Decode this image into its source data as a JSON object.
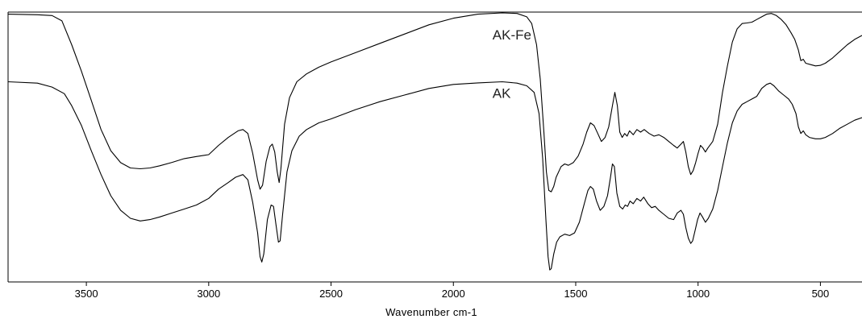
{
  "chart_data": {
    "type": "line",
    "title": "",
    "xlabel": "Wavenumber cm-1",
    "ylabel": "",
    "xlim": [
      3820,
      330
    ],
    "ylim": [
      0,
      100
    ],
    "x_reversed": true,
    "grid": false,
    "xticks": [
      3500,
      3000,
      2500,
      2000,
      1500,
      1000,
      500
    ],
    "xtick_labels": [
      "3500",
      "3000",
      "2500",
      "2000",
      "1500",
      "1000",
      "500"
    ],
    "series": [
      {
        "name": "AK-Fe",
        "label_at": [
          1840,
          90
        ],
        "color": "#000000",
        "points": [
          [
            3820,
            99.5
          ],
          [
            3700,
            99.3
          ],
          [
            3640,
            99.0
          ],
          [
            3600,
            97.0
          ],
          [
            3560,
            88.0
          ],
          [
            3520,
            78.0
          ],
          [
            3480,
            67.0
          ],
          [
            3440,
            56.0
          ],
          [
            3400,
            48.0
          ],
          [
            3360,
            43.5
          ],
          [
            3320,
            41.5
          ],
          [
            3280,
            41.2
          ],
          [
            3240,
            41.5
          ],
          [
            3200,
            42.3
          ],
          [
            3150,
            43.6
          ],
          [
            3100,
            45.0
          ],
          [
            3050,
            45.8
          ],
          [
            3000,
            46.5
          ],
          [
            2960,
            50.0
          ],
          [
            2920,
            53.0
          ],
          [
            2880,
            55.5
          ],
          [
            2860,
            56.0
          ],
          [
            2840,
            54.5
          ],
          [
            2820,
            47.0
          ],
          [
            2800,
            37.0
          ],
          [
            2790,
            33.5
          ],
          [
            2780,
            35.0
          ],
          [
            2765,
            44.0
          ],
          [
            2750,
            49.5
          ],
          [
            2740,
            50.5
          ],
          [
            2730,
            47.5
          ],
          [
            2720,
            40.0
          ],
          [
            2712,
            36.0
          ],
          [
            2705,
            41.0
          ],
          [
            2690,
            58.0
          ],
          [
            2670,
            68.0
          ],
          [
            2640,
            74.0
          ],
          [
            2600,
            77.0
          ],
          [
            2550,
            79.5
          ],
          [
            2500,
            81.5
          ],
          [
            2400,
            85.0
          ],
          [
            2300,
            88.5
          ],
          [
            2200,
            92.0
          ],
          [
            2100,
            95.5
          ],
          [
            2000,
            98.0
          ],
          [
            1900,
            99.5
          ],
          [
            1800,
            100.0
          ],
          [
            1740,
            99.8
          ],
          [
            1700,
            98.5
          ],
          [
            1680,
            96.0
          ],
          [
            1660,
            88.0
          ],
          [
            1645,
            75.0
          ],
          [
            1630,
            55.0
          ],
          [
            1620,
            40.0
          ],
          [
            1610,
            33.0
          ],
          [
            1600,
            32.5
          ],
          [
            1590,
            34.5
          ],
          [
            1580,
            38.0
          ],
          [
            1560,
            42.0
          ],
          [
            1545,
            43.0
          ],
          [
            1530,
            42.5
          ],
          [
            1510,
            43.5
          ],
          [
            1490,
            46.0
          ],
          [
            1470,
            50.5
          ],
          [
            1455,
            55.0
          ],
          [
            1440,
            58.5
          ],
          [
            1425,
            57.5
          ],
          [
            1410,
            54.5
          ],
          [
            1395,
            51.5
          ],
          [
            1380,
            53.0
          ],
          [
            1365,
            57.0
          ],
          [
            1350,
            65.0
          ],
          [
            1340,
            70.0
          ],
          [
            1330,
            65.0
          ],
          [
            1320,
            55.0
          ],
          [
            1310,
            53.0
          ],
          [
            1300,
            54.5
          ],
          [
            1290,
            53.5
          ],
          [
            1280,
            55.5
          ],
          [
            1265,
            54.0
          ],
          [
            1250,
            56.0
          ],
          [
            1235,
            55.0
          ],
          [
            1220,
            56.0
          ],
          [
            1200,
            54.5
          ],
          [
            1180,
            53.5
          ],
          [
            1160,
            54.0
          ],
          [
            1140,
            53.0
          ],
          [
            1120,
            51.5
          ],
          [
            1100,
            50.0
          ],
          [
            1085,
            49.0
          ],
          [
            1070,
            50.5
          ],
          [
            1060,
            51.5
          ],
          [
            1050,
            47.5
          ],
          [
            1040,
            42.0
          ],
          [
            1030,
            39.0
          ],
          [
            1020,
            40.5
          ],
          [
            1010,
            43.5
          ],
          [
            1000,
            47.0
          ],
          [
            990,
            50.0
          ],
          [
            980,
            49.0
          ],
          [
            970,
            47.5
          ],
          [
            960,
            49.0
          ],
          [
            940,
            51.5
          ],
          [
            920,
            58.0
          ],
          [
            900,
            70.0
          ],
          [
            880,
            80.0
          ],
          [
            860,
            89.0
          ],
          [
            840,
            94.0
          ],
          [
            820,
            96.0
          ],
          [
            800,
            96.2
          ],
          [
            780,
            96.5
          ],
          [
            760,
            97.5
          ],
          [
            740,
            98.5
          ],
          [
            720,
            99.5
          ],
          [
            700,
            99.8
          ],
          [
            680,
            99.0
          ],
          [
            660,
            97.5
          ],
          [
            640,
            95.5
          ],
          [
            620,
            92.5
          ],
          [
            605,
            90.0
          ],
          [
            590,
            86.0
          ],
          [
            580,
            82.0
          ],
          [
            570,
            82.5
          ],
          [
            560,
            81.0
          ],
          [
            540,
            80.5
          ],
          [
            520,
            80.0
          ],
          [
            500,
            80.2
          ],
          [
            480,
            81.0
          ],
          [
            450,
            83.0
          ],
          [
            420,
            85.5
          ],
          [
            390,
            88.0
          ],
          [
            360,
            90.0
          ],
          [
            330,
            91.5
          ]
        ]
      },
      {
        "name": "AK",
        "label_at": [
          1840,
          68
        ],
        "color": "#000000",
        "points": [
          [
            3820,
            74.0
          ],
          [
            3700,
            73.5
          ],
          [
            3640,
            72.0
          ],
          [
            3590,
            69.5
          ],
          [
            3560,
            65.0
          ],
          [
            3520,
            57.5
          ],
          [
            3480,
            48.0
          ],
          [
            3440,
            39.0
          ],
          [
            3400,
            31.0
          ],
          [
            3360,
            25.5
          ],
          [
            3320,
            22.5
          ],
          [
            3280,
            21.5
          ],
          [
            3240,
            22.0
          ],
          [
            3200,
            23.0
          ],
          [
            3150,
            24.5
          ],
          [
            3100,
            26.0
          ],
          [
            3050,
            27.5
          ],
          [
            3000,
            30.0
          ],
          [
            2960,
            33.5
          ],
          [
            2920,
            36.0
          ],
          [
            2890,
            38.0
          ],
          [
            2860,
            39.0
          ],
          [
            2840,
            37.0
          ],
          [
            2820,
            28.5
          ],
          [
            2800,
            17.0
          ],
          [
            2790,
            8.0
          ],
          [
            2783,
            6.0
          ],
          [
            2775,
            9.0
          ],
          [
            2760,
            22.0
          ],
          [
            2745,
            27.5
          ],
          [
            2735,
            27.0
          ],
          [
            2725,
            20.0
          ],
          [
            2715,
            13.5
          ],
          [
            2708,
            14.0
          ],
          [
            2698,
            24.0
          ],
          [
            2680,
            40.0
          ],
          [
            2660,
            48.0
          ],
          [
            2630,
            53.5
          ],
          [
            2600,
            56.0
          ],
          [
            2550,
            58.5
          ],
          [
            2500,
            60.0
          ],
          [
            2400,
            63.5
          ],
          [
            2300,
            66.5
          ],
          [
            2200,
            69.0
          ],
          [
            2100,
            71.5
          ],
          [
            2000,
            73.0
          ],
          [
            1900,
            73.6
          ],
          [
            1800,
            74.0
          ],
          [
            1740,
            73.5
          ],
          [
            1700,
            72.5
          ],
          [
            1670,
            70.0
          ],
          [
            1650,
            62.0
          ],
          [
            1635,
            45.0
          ],
          [
            1622,
            22.0
          ],
          [
            1613,
            8.0
          ],
          [
            1606,
            3.0
          ],
          [
            1600,
            3.5
          ],
          [
            1590,
            9.0
          ],
          [
            1578,
            13.5
          ],
          [
            1565,
            15.5
          ],
          [
            1545,
            16.5
          ],
          [
            1525,
            16.0
          ],
          [
            1505,
            17.0
          ],
          [
            1485,
            21.0
          ],
          [
            1465,
            28.0
          ],
          [
            1450,
            33.0
          ],
          [
            1440,
            34.5
          ],
          [
            1428,
            33.5
          ],
          [
            1415,
            29.0
          ],
          [
            1400,
            25.5
          ],
          [
            1385,
            27.0
          ],
          [
            1370,
            31.0
          ],
          [
            1358,
            38.0
          ],
          [
            1350,
            43.0
          ],
          [
            1342,
            42.0
          ],
          [
            1332,
            32.0
          ],
          [
            1320,
            27.0
          ],
          [
            1308,
            26.0
          ],
          [
            1298,
            27.5
          ],
          [
            1288,
            27.0
          ],
          [
            1278,
            29.0
          ],
          [
            1265,
            28.0
          ],
          [
            1250,
            30.0
          ],
          [
            1235,
            29.0
          ],
          [
            1222,
            30.5
          ],
          [
            1205,
            28.0
          ],
          [
            1190,
            26.5
          ],
          [
            1175,
            27.0
          ],
          [
            1160,
            25.5
          ],
          [
            1140,
            24.0
          ],
          [
            1120,
            22.5
          ],
          [
            1100,
            22.0
          ],
          [
            1085,
            24.5
          ],
          [
            1070,
            25.5
          ],
          [
            1060,
            24.0
          ],
          [
            1050,
            19.0
          ],
          [
            1040,
            15.0
          ],
          [
            1030,
            13.0
          ],
          [
            1022,
            14.0
          ],
          [
            1012,
            18.0
          ],
          [
            1002,
            22.0
          ],
          [
            992,
            24.5
          ],
          [
            982,
            23.0
          ],
          [
            970,
            21.0
          ],
          [
            958,
            22.5
          ],
          [
            940,
            26.0
          ],
          [
            920,
            33.0
          ],
          [
            900,
            42.0
          ],
          [
            880,
            51.0
          ],
          [
            860,
            58.5
          ],
          [
            840,
            63.0
          ],
          [
            820,
            65.5
          ],
          [
            800,
            66.5
          ],
          [
            780,
            67.5
          ],
          [
            760,
            68.5
          ],
          [
            740,
            71.5
          ],
          [
            720,
            73.0
          ],
          [
            705,
            73.5
          ],
          [
            690,
            72.5
          ],
          [
            670,
            70.5
          ],
          [
            650,
            69.0
          ],
          [
            630,
            67.5
          ],
          [
            615,
            65.5
          ],
          [
            600,
            62.0
          ],
          [
            590,
            57.0
          ],
          [
            580,
            54.5
          ],
          [
            570,
            55.5
          ],
          [
            560,
            54.0
          ],
          [
            545,
            53.0
          ],
          [
            520,
            52.5
          ],
          [
            500,
            52.5
          ],
          [
            480,
            53.0
          ],
          [
            450,
            54.5
          ],
          [
            420,
            56.5
          ],
          [
            390,
            58.0
          ],
          [
            360,
            59.5
          ],
          [
            330,
            60.5
          ]
        ]
      }
    ]
  }
}
